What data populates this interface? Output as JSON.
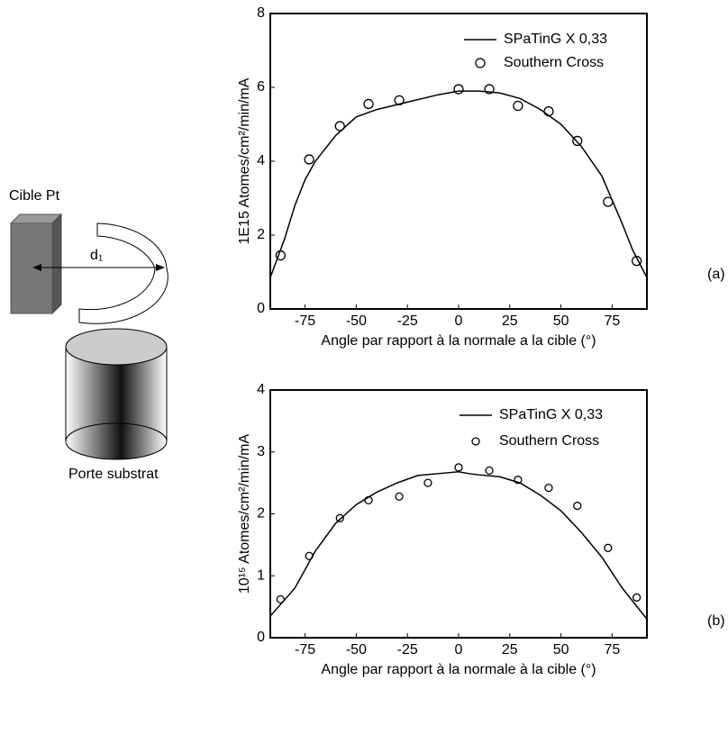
{
  "diagram": {
    "target_label": "Cible Pt",
    "distance_label": "d₁",
    "holder_label": "Porte substrat"
  },
  "chart_data": [
    {
      "type": "line",
      "label": "(a)",
      "ylabel": "1E15 Atomes/cm²/min/mA",
      "xlabel": "Angle par rapport à la normale a la cible (°)",
      "xlim": [
        -92,
        92
      ],
      "ylim": [
        0,
        8
      ],
      "xticks": [
        -75,
        -50,
        -25,
        0,
        25,
        50,
        75
      ],
      "yticks": [
        0,
        2,
        4,
        6,
        8
      ],
      "legend": "upper right",
      "series": [
        {
          "name": "SPaTinG  X 0,33",
          "color": "#000000",
          "mode": "line",
          "x": [
            -92,
            -85,
            -80,
            -75,
            -70,
            -60,
            -50,
            -40,
            -25,
            -10,
            0,
            10,
            20,
            30,
            40,
            50,
            60,
            70,
            80,
            85,
            92
          ],
          "values": [
            0.85,
            1.9,
            2.8,
            3.5,
            4.0,
            4.7,
            5.2,
            5.4,
            5.6,
            5.8,
            5.9,
            5.9,
            5.85,
            5.7,
            5.4,
            5.0,
            4.4,
            3.6,
            2.3,
            1.6,
            0.85
          ]
        },
        {
          "name": "Southern Cross",
          "color": "#000000",
          "mode": "markers",
          "x": [
            -87,
            -73,
            -58,
            -44,
            -29,
            0,
            15,
            29,
            44,
            58,
            73,
            87
          ],
          "values": [
            1.45,
            4.05,
            4.95,
            5.55,
            5.65,
            5.95,
            5.95,
            5.5,
            5.35,
            4.55,
            2.9,
            1.3
          ]
        }
      ]
    },
    {
      "type": "line",
      "label": "(b)",
      "ylabel": "10¹⁵ Atomes/cm²/min/mA",
      "xlabel": "Angle par rapport à la normale à la cible (°)",
      "xlim": [
        -92,
        92
      ],
      "ylim": [
        0,
        4
      ],
      "xticks": [
        -75,
        -50,
        -25,
        0,
        25,
        50,
        75
      ],
      "yticks": [
        0,
        1,
        2,
        3,
        4
      ],
      "legend": "upper right",
      "series": [
        {
          "name": "SPaTinG X 0,33",
          "color": "#000000",
          "mode": "line",
          "x": [
            -92,
            -80,
            -70,
            -60,
            -50,
            -40,
            -30,
            -20,
            -10,
            0,
            5,
            10,
            20,
            30,
            40,
            50,
            60,
            70,
            80,
            92
          ],
          "values": [
            0.35,
            0.8,
            1.4,
            1.85,
            2.15,
            2.35,
            2.5,
            2.62,
            2.65,
            2.68,
            2.65,
            2.63,
            2.6,
            2.5,
            2.3,
            2.05,
            1.7,
            1.3,
            0.8,
            0.3
          ]
        },
        {
          "name": "Southern Cross",
          "color": "#000000",
          "mode": "markers",
          "x": [
            -87,
            -73,
            -58,
            -44,
            -29,
            -15,
            0,
            15,
            29,
            44,
            58,
            73,
            87
          ],
          "values": [
            0.62,
            1.32,
            1.93,
            2.22,
            2.28,
            2.5,
            2.75,
            2.7,
            2.55,
            2.42,
            2.13,
            1.45,
            0.65
          ]
        }
      ]
    }
  ]
}
